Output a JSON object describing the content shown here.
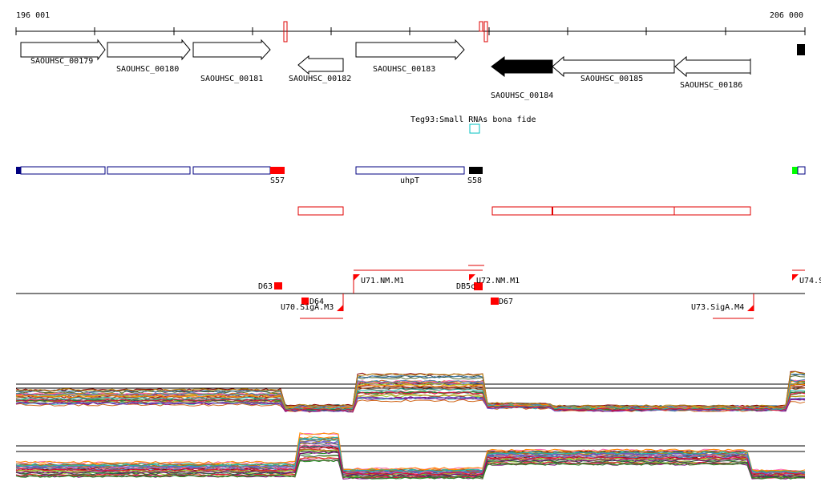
{
  "ruler": {
    "start_label": "196 001",
    "end_label": "206 000"
  },
  "genes": [
    {
      "id": "SAOUHSC_00179",
      "strand": "+",
      "fill": "#ffffff"
    },
    {
      "id": "SAOUHSC_00180",
      "strand": "+",
      "fill": "#ffffff"
    },
    {
      "id": "SAOUHSC_00181",
      "strand": "+",
      "fill": "#ffffff"
    },
    {
      "id": "SAOUHSC_00182",
      "strand": "-",
      "fill": "#ffffff"
    },
    {
      "id": "SAOUHSC_00183",
      "strand": "+",
      "fill": "#ffffff"
    },
    {
      "id": "SAOUHSC_00184",
      "strand": "-",
      "fill": "#000000"
    },
    {
      "id": "SAOUHSC_00185",
      "strand": "-",
      "fill": "#ffffff"
    },
    {
      "id": "SAOUHSC_00186",
      "strand": "-",
      "fill": "#ffffff"
    }
  ],
  "srna": {
    "label": "Teg93:Small RNAs bona fide",
    "color": "#00c0c0"
  },
  "operon_labels": {
    "s57": "S57",
    "uhpt": "uhpT",
    "s58": "S58"
  },
  "segment_labels": {
    "d63": "D63",
    "d64": "D64",
    "d65": "DB5c",
    "d67": "D67",
    "u70": "U70.SigA.M3",
    "u71": "U71.NM.M1",
    "u72": "U72.NM.M1",
    "u73": "U73.SigA.M4",
    "u74": "U74.S"
  },
  "colors": {
    "operon_outline": "#000080",
    "marker_red": "#ff0000",
    "transcript_outline": "#e00000",
    "segment_red": "#ff0000",
    "start_cap": "#000080",
    "end_green": "#00ff00"
  },
  "expression_palette": [
    "#8b0000",
    "#d2691e",
    "#556b2f",
    "#9acd32",
    "#2f4f4f",
    "#ff69b4",
    "#4682b4",
    "#800080",
    "#b8860b",
    "#228b22",
    "#a0522d",
    "#6a5acd",
    "#ff8c00",
    "#20b2aa",
    "#dc143c"
  ]
}
